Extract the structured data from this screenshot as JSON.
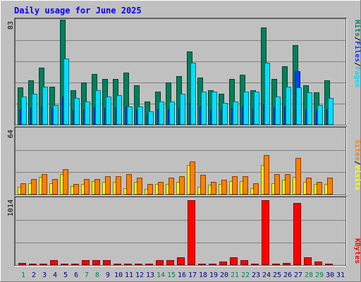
{
  "title": "Daily usage for June 2025",
  "colors": {
    "background": "#c0c0c0",
    "plot_background": "#c0c0c0",
    "gridline": "#808080",
    "title": "#0000ff",
    "hits": "#00805c",
    "files": "#0040ff",
    "pages": "#00e0ff",
    "visits": "#ffff00",
    "sites": "#ff8000",
    "kbytes": "#ff0000",
    "weekend_day": "#00805c",
    "weekday": "#000080"
  },
  "legend": {
    "hits": "Hits",
    "files": "Files",
    "pages": "Pages",
    "visits": "Visits",
    "sites": "Sites",
    "kbytes": "KBytes",
    "separator": "/"
  },
  "axis_max": {
    "hits_files_pages": "83",
    "visits_sites": "64",
    "kbytes": "1014"
  },
  "chart_data": [
    {
      "type": "bar",
      "title": "Daily usage for June 2025",
      "categories": [
        "1",
        "2",
        "3",
        "4",
        "5",
        "6",
        "7",
        "8",
        "9",
        "10",
        "11",
        "12",
        "13",
        "14",
        "15",
        "16",
        "17",
        "18",
        "19",
        "20",
        "21",
        "22",
        "23",
        "24",
        "25",
        "26",
        "27",
        "28",
        "29",
        "30",
        "31"
      ],
      "weekend_days": [
        "1",
        "7",
        "8",
        "14",
        "15",
        "21",
        "22",
        "28",
        "29"
      ],
      "ylim": [
        0,
        83
      ],
      "series": [
        {
          "name": "Hits",
          "values": [
            29,
            35,
            45,
            30,
            83,
            27,
            33,
            40,
            36,
            36,
            41,
            31,
            18,
            26,
            33,
            38,
            58,
            37,
            27,
            24,
            36,
            39,
            27,
            77,
            36,
            46,
            63,
            31,
            25,
            35,
            0
          ]
        },
        {
          "name": "Files",
          "values": [
            12,
            13,
            14,
            13,
            22,
            11,
            11,
            13,
            13,
            13,
            14,
            12,
            8,
            12,
            12,
            13,
            17,
            14,
            11,
            11,
            13,
            14,
            12,
            16,
            13,
            14,
            42,
            12,
            11,
            12,
            0
          ]
        },
        {
          "name": "Pages",
          "values": [
            22,
            24,
            30,
            15,
            52,
            21,
            18,
            27,
            22,
            23,
            14,
            14,
            10,
            18,
            18,
            24,
            49,
            26,
            26,
            17,
            18,
            26,
            26,
            49,
            22,
            30,
            29,
            25,
            15,
            21,
            0
          ]
        }
      ]
    },
    {
      "type": "bar",
      "categories": [
        "1",
        "2",
        "3",
        "4",
        "5",
        "6",
        "7",
        "8",
        "9",
        "10",
        "11",
        "12",
        "13",
        "14",
        "15",
        "16",
        "17",
        "18",
        "19",
        "20",
        "21",
        "22",
        "23",
        "24",
        "25",
        "26",
        "27",
        "28",
        "29",
        "30",
        "31"
      ],
      "ylim": [
        0,
        64
      ],
      "series": [
        {
          "name": "Visits",
          "values": [
            7,
            11,
            17,
            11,
            20,
            8,
            10,
            13,
            12,
            12,
            6,
            12,
            5,
            10,
            10,
            12,
            29,
            7,
            9,
            10,
            13,
            13,
            6,
            29,
            11,
            14,
            17,
            12,
            10,
            10,
            0
          ]
        },
        {
          "name": "Sites",
          "values": [
            11,
            15,
            20,
            15,
            25,
            10,
            15,
            15,
            18,
            18,
            20,
            16,
            10,
            12,
            16,
            18,
            33,
            19,
            12,
            14,
            18,
            18,
            11,
            39,
            20,
            20,
            36,
            16,
            12,
            16,
            0
          ]
        }
      ]
    },
    {
      "type": "bar",
      "categories": [
        "1",
        "2",
        "3",
        "4",
        "5",
        "6",
        "7",
        "8",
        "9",
        "10",
        "11",
        "12",
        "13",
        "14",
        "15",
        "16",
        "17",
        "18",
        "19",
        "20",
        "21",
        "22",
        "23",
        "24",
        "25",
        "26",
        "27",
        "28",
        "29",
        "30",
        "31"
      ],
      "ylim": [
        0,
        1014
      ],
      "series": [
        {
          "name": "KBytes",
          "values": [
            20,
            8,
            8,
            62,
            13,
            13,
            62,
            62,
            62,
            13,
            13,
            13,
            13,
            62,
            62,
            116,
            1014,
            13,
            13,
            49,
            116,
            62,
            13,
            1014,
            13,
            25,
            974,
            116,
            49,
            13,
            0
          ]
        }
      ]
    }
  ]
}
